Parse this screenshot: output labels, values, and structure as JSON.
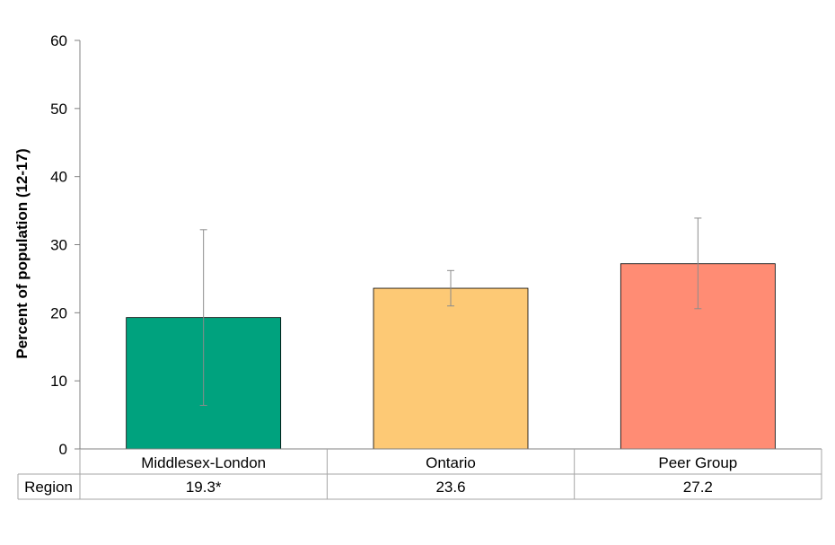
{
  "chart_data": {
    "type": "bar",
    "ylabel": "Percent of population (12-17)",
    "xlabel": "",
    "ylim": [
      0,
      60
    ],
    "yticks": [
      0,
      10,
      20,
      30,
      40,
      50,
      60
    ],
    "grid": false,
    "categories": [
      "Middlesex-London",
      "Ontario",
      "Peer Group"
    ],
    "values": [
      19.3,
      23.6,
      27.2
    ],
    "error_low": [
      6.4,
      21.0,
      20.6
    ],
    "error_high": [
      32.2,
      26.2,
      33.9
    ],
    "colors": [
      "#00a27e",
      "#fdc975",
      "#ff8c74"
    ],
    "table": {
      "row_label": "Region",
      "cells": [
        "19.3*",
        "23.6",
        "27.2"
      ]
    }
  }
}
